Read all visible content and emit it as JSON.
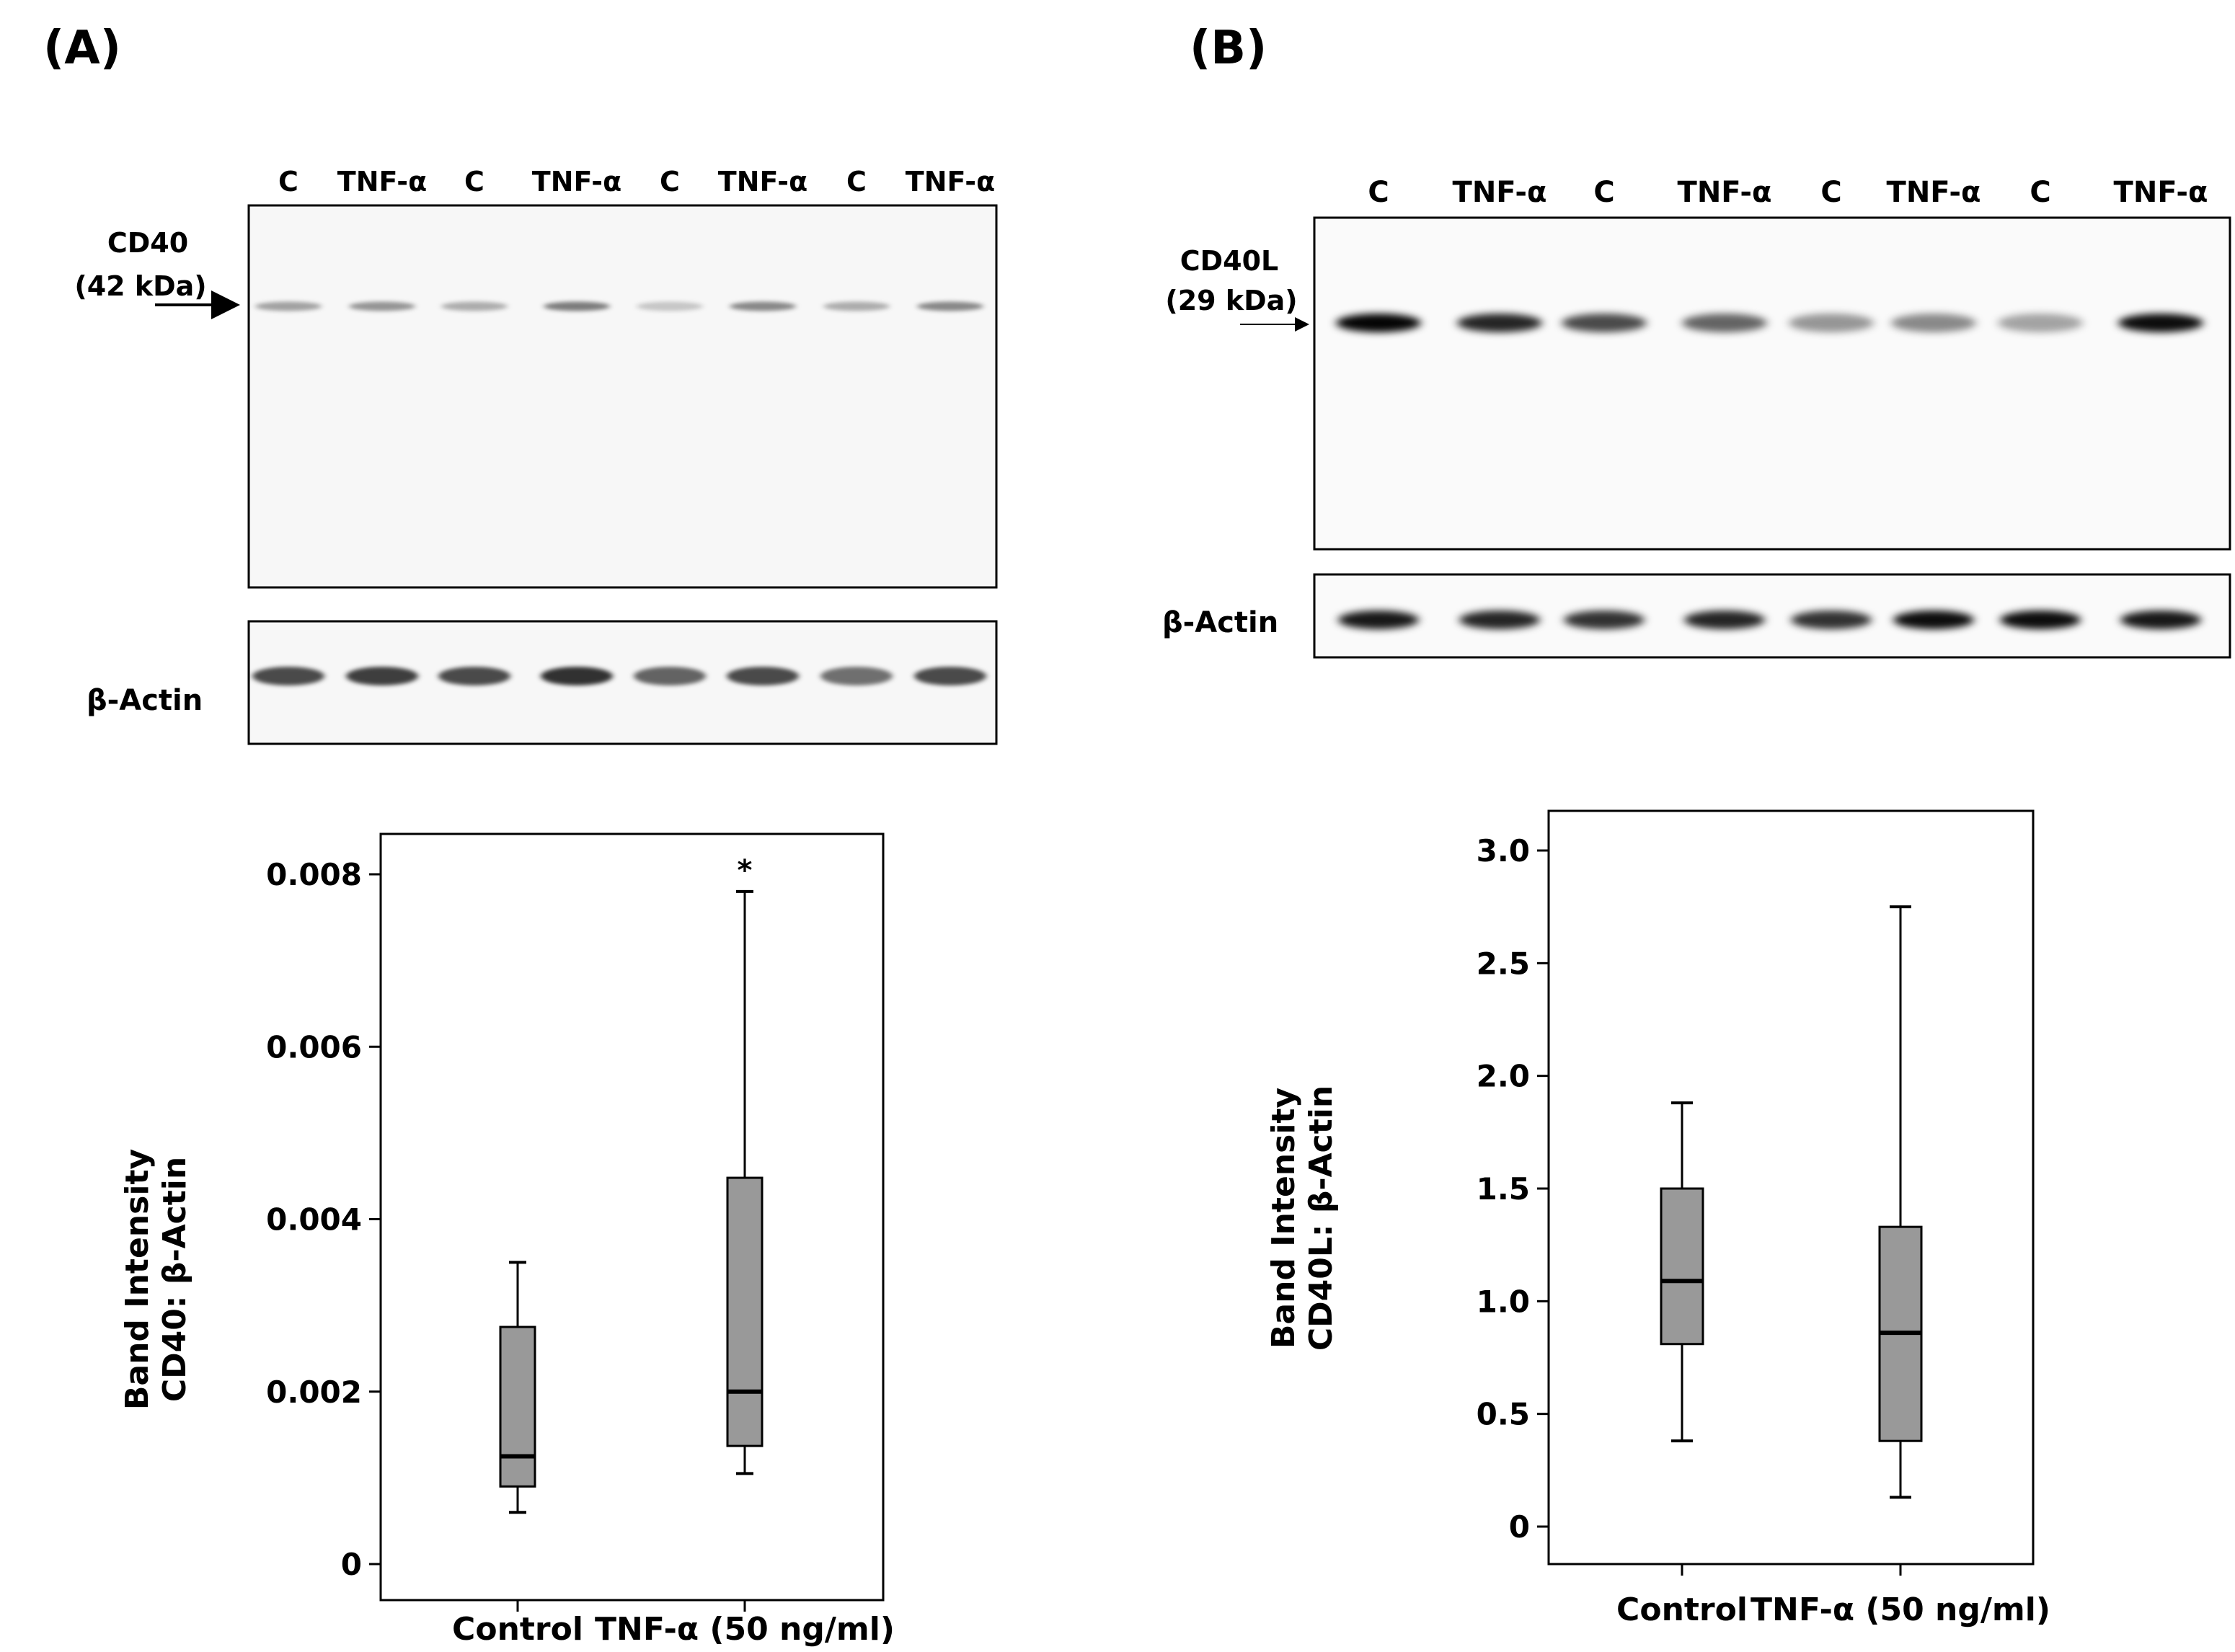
{
  "panels": [
    {
      "label": "(A)",
      "blot": {
        "lanes": [
          "C",
          "TNF-α",
          "C",
          "TNF-α",
          "C",
          "TNF-α",
          "C",
          "TNF-α"
        ],
        "protein_label": [
          "CD40",
          "(42 kDa)"
        ],
        "loading_label": "β-Actin",
        "band_strength": [
          0.35,
          0.4,
          0.3,
          0.5,
          0.2,
          0.45,
          0.3,
          0.45
        ],
        "actin_strength": [
          0.7,
          0.75,
          0.7,
          0.8,
          0.6,
          0.7,
          0.55,
          0.7
        ]
      }
    },
    {
      "label": "(B)",
      "blot": {
        "lanes": [
          "C",
          "TNF-α",
          "C",
          "TNF-α",
          "C",
          "TNF-α",
          "C",
          "TNF-α"
        ],
        "protein_label": [
          "CD40L",
          "(29 kDa)"
        ],
        "loading_label": "β-Actin",
        "band_strength": [
          0.98,
          0.85,
          0.7,
          0.6,
          0.4,
          0.45,
          0.35,
          0.95
        ],
        "actin_strength": [
          0.9,
          0.85,
          0.8,
          0.85,
          0.8,
          0.95,
          0.95,
          0.9
        ]
      }
    }
  ],
  "chart_data": [
    {
      "type": "box",
      "categories": [
        "Control",
        "TNF-α (50 ng/ml)"
      ],
      "ylabel": [
        "Band Intensity",
        "CD40: β-Actin"
      ],
      "xlabel": "",
      "ylim": [
        0,
        0.0084
      ],
      "yticks": [
        0,
        0.002,
        0.004,
        0.006,
        0.008
      ],
      "ytick_labels": [
        "0",
        "0.002",
        "0.004",
        "0.006",
        "0.008"
      ],
      "boxes": [
        {
          "min": 0.0006,
          "q1": 0.0009,
          "median": 0.00125,
          "q3": 0.00275,
          "max": 0.0035,
          "annotation": ""
        },
        {
          "min": 0.00105,
          "q1": 0.00137,
          "median": 0.002,
          "q3": 0.00448,
          "max": 0.0078,
          "annotation": "*"
        }
      ],
      "fill_color": "#999999"
    },
    {
      "type": "box",
      "categories": [
        "Control",
        "TNF-α (50 ng/ml)"
      ],
      "ylabel": [
        "Band Intensity",
        "CD40L: β-Actin"
      ],
      "xlabel": "",
      "ylim": [
        -0.14,
        3.15
      ],
      "yticks": [
        0,
        0.5,
        1.0,
        1.5,
        2.0,
        2.5,
        3.0
      ],
      "ytick_labels": [
        "0",
        "0.5",
        "1.0",
        "1.5",
        "2.0",
        "2.5",
        "3.0"
      ],
      "boxes": [
        {
          "min": 0.38,
          "q1": 0.81,
          "median": 1.09,
          "q3": 1.5,
          "max": 1.88,
          "annotation": ""
        },
        {
          "min": 0.13,
          "q1": 0.38,
          "median": 0.86,
          "q3": 1.33,
          "max": 2.75,
          "annotation": ""
        }
      ],
      "fill_color": "#999999"
    }
  ]
}
